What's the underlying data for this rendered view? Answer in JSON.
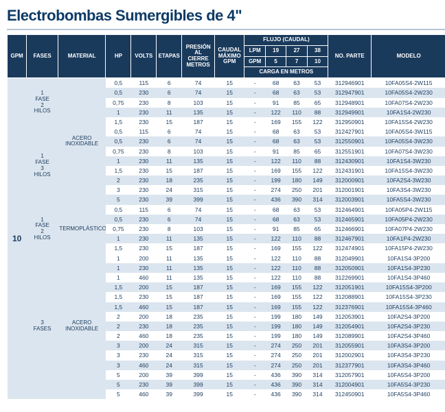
{
  "title": "Electrobombas Sumergibles de 4\"",
  "header": {
    "gpm": "GPM",
    "fases": "FASES",
    "material": "MATERIAL",
    "hp": "HP",
    "volts": "VOLTS",
    "etapas": "ETAPAS",
    "presion": "PRESIÓN AL CIERRE METROS",
    "caudal": "CAUDAL MÁXIMO GPM",
    "flujo": "FLUJO (CAUDAL)",
    "lpm": "LPM",
    "lpm19": "19",
    "lpm27": "27",
    "lpm38": "38",
    "gpm2": "GPM",
    "g5": "5",
    "g7": "7",
    "g10": "10",
    "carga": "CARGA EN METROS",
    "noparte": "NO. PARTE",
    "modelo": "MODELO"
  },
  "gpm_value": "10",
  "groups": [
    {
      "fase": "1 FASE 2 HILOS",
      "material": null,
      "material_rowspan_extra": false,
      "rows": [
        {
          "hp": "0,5",
          "v": "115",
          "et": "6",
          "pr": "74",
          "ca": "15",
          "c0": "-",
          "c1": "68",
          "c2": "63",
          "c3": "53",
          "pn": "312946901",
          "md": "10FA05S4-2W115"
        },
        {
          "hp": "0,5",
          "v": "230",
          "et": "6",
          "pr": "74",
          "ca": "15",
          "c0": "-",
          "c1": "68",
          "c2": "63",
          "c3": "53",
          "pn": "312947901",
          "md": "10FA05S4-2W230"
        },
        {
          "hp": "0,75",
          "v": "230",
          "et": "8",
          "pr": "103",
          "ca": "15",
          "c0": "-",
          "c1": "91",
          "c2": "85",
          "c3": "65",
          "pn": "312948901",
          "md": "10FA07S4-2W230"
        },
        {
          "hp": "1",
          "v": "230",
          "et": "11",
          "pr": "135",
          "ca": "15",
          "c0": "-",
          "c1": "122",
          "c2": "110",
          "c3": "88",
          "pn": "312949901",
          "md": "10FA1S4-2W230"
        },
        {
          "hp": "1,5",
          "v": "230",
          "et": "15",
          "pr": "187",
          "ca": "15",
          "c0": "-",
          "c1": "169",
          "c2": "155",
          "c3": "122",
          "pn": "312950901",
          "md": "10FA15S4-2W230"
        }
      ]
    },
    {
      "fase": "1 FASE 3 HILOS",
      "material": "ACERO INOXIDABLE",
      "material_rowspan": 13,
      "material_starts_here": true,
      "rows": [
        {
          "hp": "0,5",
          "v": "115",
          "et": "6",
          "pr": "74",
          "ca": "15",
          "c0": "-",
          "c1": "68",
          "c2": "63",
          "c3": "53",
          "pn": "312427901",
          "md": "10FA05S4-3W115"
        },
        {
          "hp": "0,5",
          "v": "230",
          "et": "6",
          "pr": "74",
          "ca": "15",
          "c0": "-",
          "c1": "68",
          "c2": "63",
          "c3": "53",
          "pn": "312550901",
          "md": "10FA05S4-3W230"
        },
        {
          "hp": "0,75",
          "v": "230",
          "et": "8",
          "pr": "103",
          "ca": "15",
          "c0": "-",
          "c1": "91",
          "c2": "85",
          "c3": "65",
          "pn": "312551901",
          "md": "10FA07S4-3W230"
        },
        {
          "hp": "1",
          "v": "230",
          "et": "11",
          "pr": "135",
          "ca": "15",
          "c0": "-",
          "c1": "122",
          "c2": "110",
          "c3": "88",
          "pn": "312430901",
          "md": "10FA1S4-3W230"
        },
        {
          "hp": "1,5",
          "v": "230",
          "et": "15",
          "pr": "187",
          "ca": "15",
          "c0": "-",
          "c1": "169",
          "c2": "155",
          "c3": "122",
          "pn": "312431901",
          "md": "10FA15S4-3W230"
        },
        {
          "hp": "2",
          "v": "230",
          "et": "18",
          "pr": "235",
          "ca": "15",
          "c0": "-",
          "c1": "199",
          "c2": "180",
          "c3": "149",
          "pn": "312000901",
          "md": "10FA2S4-3W230"
        },
        {
          "hp": "3",
          "v": "230",
          "et": "24",
          "pr": "315",
          "ca": "15",
          "c0": "-",
          "c1": "274",
          "c2": "250",
          "c3": "201",
          "pn": "312001901",
          "md": "10FA3S4-3W230"
        },
        {
          "hp": "5",
          "v": "230",
          "et": "39",
          "pr": "399",
          "ca": "15",
          "c0": "-",
          "c1": "436",
          "c2": "390",
          "c3": "314",
          "pn": "312003901",
          "md": "10FA5S4-3W230"
        }
      ]
    },
    {
      "fase": "1 FASE 2 HILOS",
      "material": "TERMOPLÁSTICO",
      "material_rowspan": 5,
      "material_starts_here": true,
      "rows": [
        {
          "hp": "0,5",
          "v": "115",
          "et": "6",
          "pr": "74",
          "ca": "15",
          "c0": "-",
          "c1": "68",
          "c2": "63",
          "c3": "53",
          "pn": "312464901",
          "md": "10FA05P4-2W115"
        },
        {
          "hp": "0,5",
          "v": "230",
          "et": "6",
          "pr": "74",
          "ca": "15",
          "c0": "-",
          "c1": "68",
          "c2": "63",
          "c3": "53",
          "pn": "312465901",
          "md": "10FA05P4-2W230"
        },
        {
          "hp": "0,75",
          "v": "230",
          "et": "8",
          "pr": "103",
          "ca": "15",
          "c0": "-",
          "c1": "91",
          "c2": "85",
          "c3": "65",
          "pn": "312466901",
          "md": "10FA07P4-2W230"
        },
        {
          "hp": "1",
          "v": "230",
          "et": "11",
          "pr": "135",
          "ca": "15",
          "c0": "-",
          "c1": "122",
          "c2": "110",
          "c3": "88",
          "pn": "312467901",
          "md": "10FA1P4-2W230"
        },
        {
          "hp": "1,5",
          "v": "230",
          "et": "15",
          "pr": "187",
          "ca": "15",
          "c0": "-",
          "c1": "169",
          "c2": "155",
          "c3": "122",
          "pn": "312474901",
          "md": "10FA15P4-2W230"
        }
      ]
    },
    {
      "fase": "3 FASES",
      "material": "ACERO INOXIDABLE",
      "material_rowspan": 15,
      "material_starts_here": true,
      "rows": [
        {
          "hp": "1",
          "v": "200",
          "et": "11",
          "pr": "135",
          "ca": "15",
          "c0": "-",
          "c1": "122",
          "c2": "110",
          "c3": "88",
          "pn": "312049901",
          "md": "10FA1S4-3P200"
        },
        {
          "hp": "1",
          "v": "230",
          "et": "11",
          "pr": "135",
          "ca": "15",
          "c0": "-",
          "c1": "122",
          "c2": "110",
          "c3": "88",
          "pn": "312050901",
          "md": "10FA1S4-3P230"
        },
        {
          "hp": "1",
          "v": "460",
          "et": "11",
          "pr": "135",
          "ca": "15",
          "c0": "-",
          "c1": "122",
          "c2": "110",
          "c3": "88",
          "pn": "312269901",
          "md": "10FA1S4-3P460"
        },
        {
          "hp": "1,5",
          "v": "200",
          "et": "15",
          "pr": "187",
          "ca": "15",
          "c0": "-",
          "c1": "169",
          "c2": "155",
          "c3": "122",
          "pn": "312051901",
          "md": "10FA15S4-3P200"
        },
        {
          "hp": "1,5",
          "v": "230",
          "et": "15",
          "pr": "187",
          "ca": "15",
          "c0": "-",
          "c1": "169",
          "c2": "155",
          "c3": "122",
          "pn": "312088901",
          "md": "10FA15S4-3P230"
        },
        {
          "hp": "1,5",
          "v": "460",
          "et": "15",
          "pr": "187",
          "ca": "15",
          "c0": "-",
          "c1": "169",
          "c2": "155",
          "c3": "122",
          "pn": "312376901",
          "md": "10FA15S4-3P460"
        },
        {
          "hp": "2",
          "v": "200",
          "et": "18",
          "pr": "235",
          "ca": "15",
          "c0": "-",
          "c1": "199",
          "c2": "180",
          "c3": "149",
          "pn": "312053901",
          "md": "10FA2S4-3P200"
        },
        {
          "hp": "2",
          "v": "230",
          "et": "18",
          "pr": "235",
          "ca": "15",
          "c0": "-",
          "c1": "199",
          "c2": "180",
          "c3": "149",
          "pn": "312054901",
          "md": "10FA2S4-3P230"
        },
        {
          "hp": "2",
          "v": "460",
          "et": "18",
          "pr": "235",
          "ca": "15",
          "c0": "-",
          "c1": "199",
          "c2": "180",
          "c3": "149",
          "pn": "312089901",
          "md": "10FA2S4-3P460"
        },
        {
          "hp": "3",
          "v": "200",
          "et": "24",
          "pr": "315",
          "ca": "15",
          "c0": "-",
          "c1": "274",
          "c2": "250",
          "c3": "201",
          "pn": "312055901",
          "md": "10FA3S4-3P200"
        },
        {
          "hp": "3",
          "v": "230",
          "et": "24",
          "pr": "315",
          "ca": "15",
          "c0": "-",
          "c1": "274",
          "c2": "250",
          "c3": "201",
          "pn": "312002901",
          "md": "10FA3S4-3P230"
        },
        {
          "hp": "3",
          "v": "460",
          "et": "24",
          "pr": "315",
          "ca": "15",
          "c0": "-",
          "c1": "274",
          "c2": "250",
          "c3": "201",
          "pn": "312377901",
          "md": "10FA3S4-3P460"
        },
        {
          "hp": "5",
          "v": "200",
          "et": "39",
          "pr": "399",
          "ca": "15",
          "c0": "-",
          "c1": "436",
          "c2": "390",
          "c3": "314",
          "pn": "312057901",
          "md": "10FA5S4-3P200"
        },
        {
          "hp": "5",
          "v": "230",
          "et": "39",
          "pr": "399",
          "ca": "15",
          "c0": "-",
          "c1": "436",
          "c2": "390",
          "c3": "314",
          "pn": "312004901",
          "md": "10FA5S4-3P230"
        },
        {
          "hp": "5",
          "v": "460",
          "et": "39",
          "pr": "399",
          "ca": "15",
          "c0": "-",
          "c1": "436",
          "c2": "390",
          "c3": "314",
          "pn": "312450901",
          "md": "10FA5S4-3P460"
        }
      ]
    }
  ]
}
